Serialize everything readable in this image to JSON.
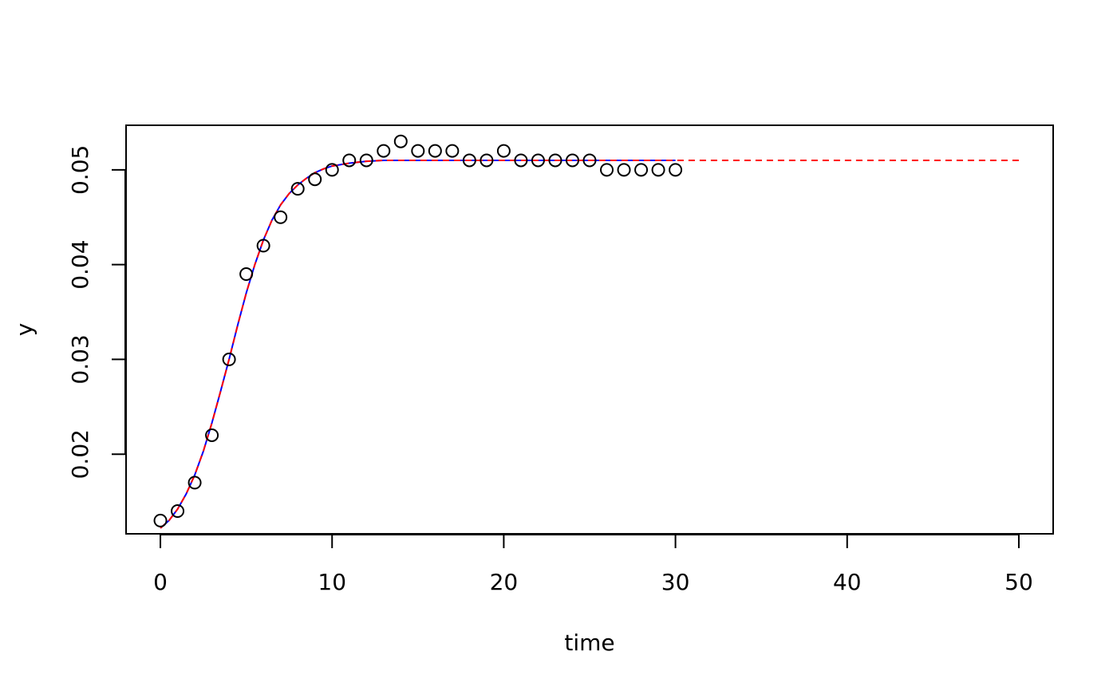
{
  "chart_data": {
    "type": "scatter",
    "xlabel": "time",
    "ylabel": "y",
    "xlim": [
      -2,
      52
    ],
    "ylim": [
      0.0116,
      0.0547
    ],
    "x_ticks": [
      0,
      10,
      20,
      30,
      40,
      50
    ],
    "y_ticks": [
      0.02,
      0.03,
      0.04,
      0.05
    ],
    "x_tick_labels": [
      "0",
      "10",
      "20",
      "30",
      "40",
      "50"
    ],
    "y_tick_labels": [
      "0.02",
      "0.03",
      "0.04",
      "0.05"
    ],
    "grid": false,
    "points": {
      "x": [
        0,
        1,
        2,
        3,
        4,
        5,
        6,
        7,
        8,
        9,
        10,
        11,
        12,
        13,
        14,
        15,
        16,
        17,
        18,
        19,
        20,
        21,
        22,
        23,
        24,
        25,
        26,
        27,
        28,
        29,
        30
      ],
      "y": [
        0.013,
        0.014,
        0.017,
        0.022,
        0.03,
        0.039,
        0.042,
        0.045,
        0.048,
        0.049,
        0.05,
        0.051,
        0.051,
        0.052,
        0.053,
        0.052,
        0.052,
        0.052,
        0.051,
        0.051,
        0.052,
        0.051,
        0.051,
        0.051,
        0.051,
        0.051,
        0.05,
        0.05,
        0.05,
        0.05,
        0.05
      ],
      "marker": "open-circle",
      "color": "#000000"
    },
    "series": [
      {
        "style": "solid",
        "color": "#0000ff",
        "x": [
          0,
          0.5,
          1,
          1.5,
          2,
          2.5,
          3,
          3.5,
          4,
          4.5,
          5,
          5.5,
          6,
          6.5,
          7,
          7.5,
          8,
          8.5,
          9,
          9.5,
          10,
          11,
          12,
          13,
          14,
          15,
          20,
          25,
          30
        ],
        "y": [
          0.0122,
          0.013,
          0.0142,
          0.0158,
          0.0178,
          0.0203,
          0.0233,
          0.0266,
          0.03,
          0.0336,
          0.037,
          0.04,
          0.0426,
          0.0447,
          0.0463,
          0.0475,
          0.0484,
          0.0491,
          0.0497,
          0.0501,
          0.0504,
          0.0507,
          0.0509,
          0.051,
          0.051,
          0.051,
          0.051,
          0.051,
          0.051
        ]
      },
      {
        "style": "dashed",
        "color": "#ff0000",
        "x": [
          0,
          0.5,
          1,
          1.5,
          2,
          2.5,
          3,
          3.5,
          4,
          4.5,
          5,
          5.5,
          6,
          6.5,
          7,
          7.5,
          8,
          8.5,
          9,
          9.5,
          10,
          11,
          12,
          13,
          14,
          15,
          20,
          30,
          40,
          50
        ],
        "y": [
          0.0122,
          0.013,
          0.0142,
          0.0158,
          0.0178,
          0.0203,
          0.0233,
          0.0266,
          0.03,
          0.0336,
          0.037,
          0.04,
          0.0426,
          0.0447,
          0.0463,
          0.0475,
          0.0484,
          0.0491,
          0.0497,
          0.0501,
          0.0504,
          0.0507,
          0.0509,
          0.051,
          0.051,
          0.051,
          0.051,
          0.051,
          0.051,
          0.051
        ]
      }
    ]
  }
}
